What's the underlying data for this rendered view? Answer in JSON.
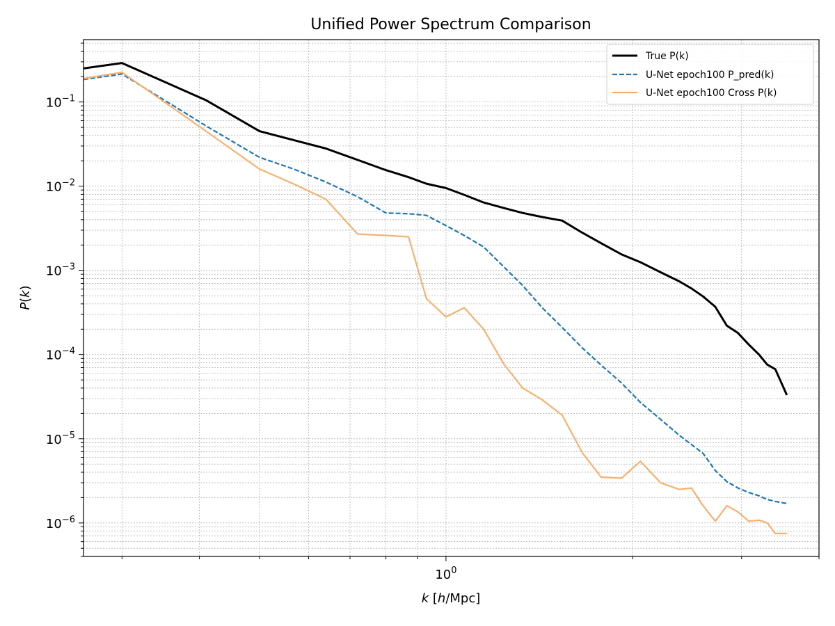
{
  "chart_data": {
    "type": "line",
    "title": "Unified Power Spectrum Comparison",
    "xlabel": "k [h/Mpc]",
    "ylabel": "P(k)",
    "xscale": "log",
    "yscale": "log",
    "xlim": [
      0.26,
      4.0
    ],
    "ylim": [
      4e-07,
      0.55
    ],
    "grid": "on (major and minor, dotted)",
    "legend_position": "top-right",
    "x_ticks": [
      {
        "value": 1,
        "base": "10",
        "exp": "0"
      }
    ],
    "y_ticks": [
      {
        "value": 1e-06,
        "base": "10",
        "exp": "−6"
      },
      {
        "value": 1e-05,
        "base": "10",
        "exp": "−5"
      },
      {
        "value": 0.0001,
        "base": "10",
        "exp": "−4"
      },
      {
        "value": 0.001,
        "base": "10",
        "exp": "−3"
      },
      {
        "value": 0.01,
        "base": "10",
        "exp": "−2"
      },
      {
        "value": 0.1,
        "base": "10",
        "exp": "−1"
      }
    ],
    "series": [
      {
        "name": "True P(k)",
        "color": "#000000",
        "style": "solid",
        "x": [
          0.26,
          0.3,
          0.41,
          0.5,
          0.57,
          0.64,
          0.72,
          0.8,
          0.87,
          0.93,
          1.0,
          1.07,
          1.15,
          1.24,
          1.33,
          1.43,
          1.54,
          1.66,
          1.78,
          1.92,
          2.06,
          2.22,
          2.38,
          2.49,
          2.6,
          2.72,
          2.84,
          2.96,
          3.08,
          3.2,
          3.3,
          3.4,
          3.55
        ],
        "y": [
          0.25,
          0.29,
          0.105,
          0.045,
          0.035,
          0.028,
          0.0205,
          0.0155,
          0.0128,
          0.0107,
          0.0095,
          0.0079,
          0.0064,
          0.0055,
          0.0048,
          0.0043,
          0.0039,
          0.0028,
          0.0021,
          0.00155,
          0.00125,
          0.00095,
          0.00074,
          0.00061,
          0.00049,
          0.00037,
          0.00022,
          0.00018,
          0.000132,
          0.0001,
          7.6e-05,
          6.7e-05,
          3.3e-05
        ]
      },
      {
        "name": "U-Net epoch100 P_pred(k)",
        "color": "#1f77b4",
        "style": "dashed",
        "x": [
          0.26,
          0.3,
          0.41,
          0.5,
          0.57,
          0.64,
          0.72,
          0.8,
          0.87,
          0.93,
          1.0,
          1.07,
          1.15,
          1.24,
          1.33,
          1.43,
          1.54,
          1.66,
          1.78,
          1.92,
          2.06,
          2.22,
          2.38,
          2.6,
          2.72,
          2.84,
          2.96,
          3.08,
          3.2,
          3.3,
          3.4,
          3.55
        ],
        "y": [
          0.185,
          0.215,
          0.052,
          0.022,
          0.0158,
          0.0112,
          0.0075,
          0.0048,
          0.0047,
          0.0045,
          0.0034,
          0.0026,
          0.0019,
          0.0011,
          0.00066,
          0.00036,
          0.00021,
          0.00012,
          7.5e-05,
          4.6e-05,
          2.7e-05,
          1.7e-05,
          1.1e-05,
          6.7e-06,
          4.2e-06,
          3.1e-06,
          2.6e-06,
          2.3e-06,
          2.1e-06,
          1.9e-06,
          1.8e-06,
          1.7e-06
        ]
      },
      {
        "name": "U-Net epoch100 Cross P(k)",
        "color": "#f8b06f",
        "style": "solid",
        "x": [
          0.26,
          0.3,
          0.41,
          0.5,
          0.57,
          0.64,
          0.72,
          0.8,
          0.87,
          0.93,
          1.0,
          1.07,
          1.15,
          1.24,
          1.33,
          1.43,
          1.54,
          1.66,
          1.78,
          1.92,
          2.06,
          2.22,
          2.38,
          2.49,
          2.6,
          2.72,
          2.84,
          2.96,
          3.08,
          3.2,
          3.3,
          3.4,
          3.55
        ],
        "y": [
          0.19,
          0.225,
          0.045,
          0.016,
          0.0105,
          0.007,
          0.0027,
          0.0026,
          0.0025,
          0.00046,
          0.00028,
          0.00036,
          0.0002,
          7.7e-05,
          4e-05,
          2.9e-05,
          1.9e-05,
          6.8e-06,
          3.5e-06,
          3.4e-06,
          5.4e-06,
          3e-06,
          2.5e-06,
          2.6e-06,
          1.6e-06,
          1.05e-06,
          1.6e-06,
          1.35e-06,
          1.05e-06,
          1.08e-06,
          1e-06,
          7.5e-07,
          7.5e-07
        ]
      }
    ]
  }
}
